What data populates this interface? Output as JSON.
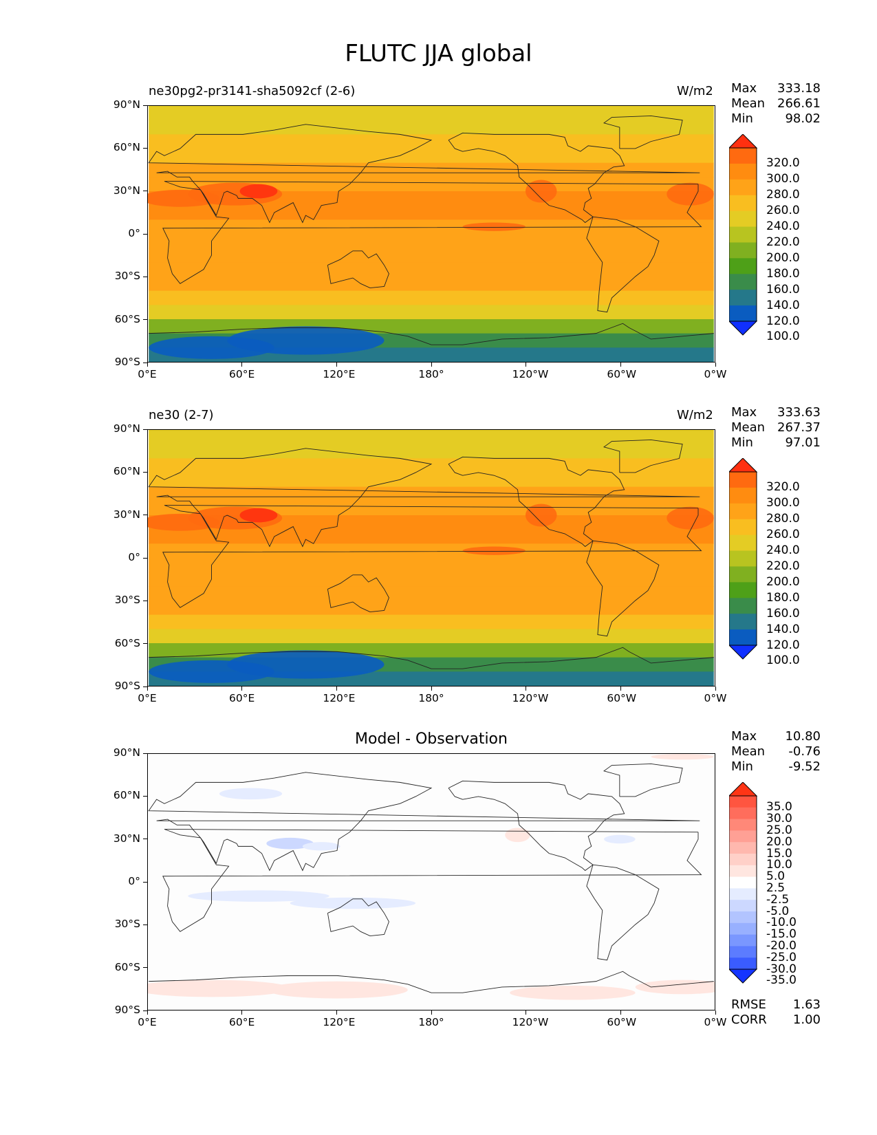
{
  "page": {
    "title": "FLUTC JJA global"
  },
  "panels": [
    {
      "left_title": "ne30pg2-pr3141-sha5092cf (2-6)",
      "center_title": "",
      "units": "W/m2",
      "stats": [
        {
          "label": "Max",
          "value": "333.18"
        },
        {
          "label": "Mean",
          "value": "266.61"
        },
        {
          "label": "Min",
          "value": "98.02"
        }
      ]
    },
    {
      "left_title": "ne30 (2-7)",
      "center_title": "",
      "units": "W/m2",
      "stats": [
        {
          "label": "Max",
          "value": "333.63"
        },
        {
          "label": "Mean",
          "value": "267.37"
        },
        {
          "label": "Min",
          "value": "97.01"
        }
      ]
    },
    {
      "left_title": "",
      "center_title": "Model - Observation",
      "units": "",
      "stats": [
        {
          "label": "Max",
          "value": "10.80"
        },
        {
          "label": "Mean",
          "value": "-0.76"
        },
        {
          "label": "Min",
          "value": "-9.52"
        }
      ],
      "metrics": [
        {
          "label": "RMSE",
          "value": "1.63"
        },
        {
          "label": "CORR",
          "value": "1.00"
        }
      ]
    }
  ],
  "axes": {
    "x_ticks": [
      "0°E",
      "60°E",
      "120°E",
      "180°",
      "120°W",
      "60°W",
      "0°W"
    ],
    "y_ticks": [
      "90°N",
      "60°N",
      "30°N",
      "0°",
      "30°S",
      "60°S",
      "90°S"
    ]
  },
  "colorbars": {
    "field": {
      "levels": [
        "320.0",
        "300.0",
        "280.0",
        "260.0",
        "240.0",
        "220.0",
        "200.0",
        "180.0",
        "160.0",
        "140.0",
        "120.0",
        "100.0"
      ],
      "colors": [
        "#ff3010",
        "#ff6a10",
        "#ff8c10",
        "#ffa318",
        "#f9be20",
        "#e4cc24",
        "#b8c420",
        "#80b020",
        "#4ea018",
        "#3a8c4a",
        "#25788a",
        "#0a5cc0",
        "#1030ff"
      ]
    },
    "diff": {
      "levels": [
        "35.0",
        "30.0",
        "25.0",
        "20.0",
        "15.0",
        "10.0",
        "5.0",
        "2.5",
        "-2.5",
        "-5.0",
        "-10.0",
        "-15.0",
        "-20.0",
        "-25.0",
        "-30.0",
        "-35.0"
      ],
      "colors": [
        "#ff3515",
        "#ff5540",
        "#ff6d5c",
        "#ff8878",
        "#ffa095",
        "#ffb8ae",
        "#ffd0c8",
        "#ffe6e0",
        "#ffffff",
        "#e5ecff",
        "#ccd8ff",
        "#b2c4ff",
        "#98b0ff",
        "#7a97ff",
        "#5c7cff",
        "#3a5cff",
        "#1535ff"
      ]
    }
  },
  "chart_data": [
    {
      "type": "heatmap",
      "title": "ne30pg2-pr3141-sha5092cf (2-6)",
      "units": "W/m2",
      "xlim": [
        0,
        360
      ],
      "ylim": [
        -90,
        90
      ],
      "zonal_mean_by_latitude": {
        "lat": [
          90,
          80,
          70,
          60,
          50,
          40,
          30,
          20,
          10,
          0,
          -10,
          -20,
          -30,
          -40,
          -50,
          -60,
          -70,
          -80,
          -90
        ],
        "value": [
          225,
          235,
          240,
          245,
          258,
          272,
          282,
          285,
          278,
          272,
          282,
          278,
          268,
          255,
          240,
          225,
          175,
          140,
          130
        ]
      },
      "max": 333.18,
      "mean": 266.61,
      "min": 98.02
    },
    {
      "type": "heatmap",
      "title": "ne30 (2-7)",
      "units": "W/m2",
      "xlim": [
        0,
        360
      ],
      "ylim": [
        -90,
        90
      ],
      "zonal_mean_by_latitude": {
        "lat": [
          90,
          80,
          70,
          60,
          50,
          40,
          30,
          20,
          10,
          0,
          -10,
          -20,
          -30,
          -40,
          -50,
          -60,
          -70,
          -80,
          -90
        ],
        "value": [
          225,
          235,
          240,
          245,
          258,
          272,
          282,
          285,
          278,
          272,
          282,
          278,
          268,
          255,
          240,
          225,
          175,
          140,
          125
        ]
      },
      "max": 333.63,
      "mean": 267.37,
      "min": 97.01
    },
    {
      "type": "heatmap",
      "title": "Model - Observation",
      "xlim": [
        0,
        360
      ],
      "ylim": [
        -90,
        90
      ],
      "max": 10.8,
      "mean": -0.76,
      "min": -9.52,
      "rmse": 1.63,
      "corr": 1.0
    }
  ]
}
